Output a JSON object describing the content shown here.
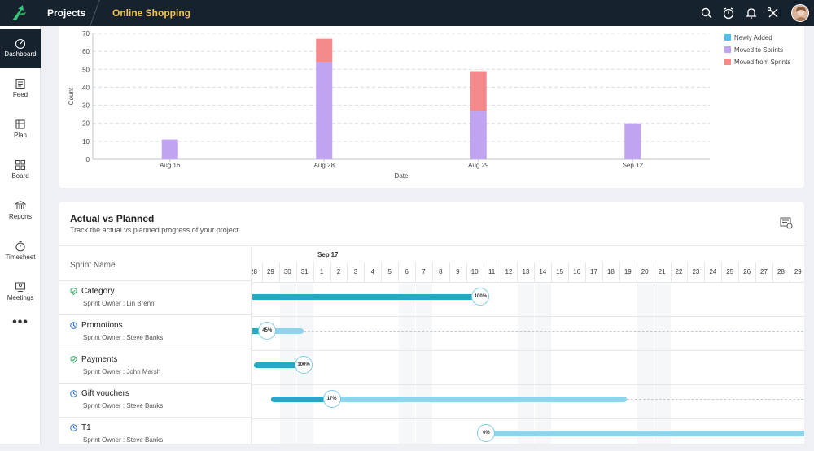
{
  "topbar": {
    "projects_label": "Projects",
    "project_name": "Online Shopping",
    "icons": [
      "search-icon",
      "timer-icon",
      "bell-icon",
      "tools-icon"
    ]
  },
  "sidebar": {
    "items": [
      {
        "label": "Dashboard",
        "icon": "dashboard-icon",
        "active": true
      },
      {
        "label": "Feed",
        "icon": "feed-icon"
      },
      {
        "label": "Plan",
        "icon": "plan-icon"
      },
      {
        "label": "Board",
        "icon": "board-icon"
      },
      {
        "label": "Reports",
        "icon": "reports-icon"
      },
      {
        "label": "Timesheet",
        "icon": "timesheet-icon"
      },
      {
        "label": "Meetings",
        "icon": "meetings-icon"
      }
    ],
    "more": "•••"
  },
  "chart_data": {
    "type": "bar",
    "stacked": true,
    "categories": [
      "Aug 16",
      "Aug 28",
      "Aug 29",
      "Sep 12"
    ],
    "series": [
      {
        "name": "Newly Added",
        "color": "#4fc0e8",
        "values": [
          0,
          0,
          0,
          0
        ]
      },
      {
        "name": "Moved to Sprints",
        "color": "#c0a4f2",
        "values": [
          11,
          54,
          27,
          20
        ]
      },
      {
        "name": "Moved from Sprints",
        "color": "#f58a8a",
        "values": [
          0,
          13,
          22,
          0
        ]
      }
    ],
    "xlabel": "Date",
    "ylabel": "Count",
    "ylim": [
      0,
      70
    ],
    "yticks": [
      0,
      10,
      20,
      30,
      40,
      50,
      60,
      70
    ],
    "grid": true,
    "legend_position": "top-right"
  },
  "gantt": {
    "title": "Actual vs Planned",
    "subtitle": "Track the actual vs planned progress of your project.",
    "column_header": "Sprint Name",
    "month_label": "Sep'17",
    "days": [
      "28",
      "29",
      "30",
      "31",
      "1",
      "2",
      "3",
      "4",
      "5",
      "6",
      "7",
      "8",
      "9",
      "10",
      "11",
      "12",
      "13",
      "14",
      "15",
      "16",
      "17",
      "18",
      "19",
      "20",
      "21",
      "22",
      "23",
      "24",
      "25",
      "26",
      "27",
      "28",
      "29"
    ],
    "weekend_days": [
      2,
      3,
      9,
      10,
      16,
      17,
      23,
      24
    ],
    "sprints": [
      {
        "name": "Category",
        "owner": "Sprint Owner : Lin Brenn",
        "status": "completed",
        "percent": "100%",
        "progress": 1.0
      },
      {
        "name": "Promotions",
        "owner": "Sprint Owner : Steve Banks",
        "status": "in-progress",
        "percent": "45%",
        "progress": 0.45
      },
      {
        "name": "Payments",
        "owner": "Sprint Owner : John Marsh",
        "status": "completed",
        "percent": "100%",
        "progress": 1.0
      },
      {
        "name": "Gift vouchers",
        "owner": "Sprint Owner : Steve Banks",
        "status": "in-progress",
        "percent": "17%",
        "progress": 0.17
      },
      {
        "name": "T1",
        "owner": "Sprint Owner : Steve Banks",
        "status": "in-progress",
        "percent": "0%",
        "progress": 0.0
      }
    ]
  }
}
